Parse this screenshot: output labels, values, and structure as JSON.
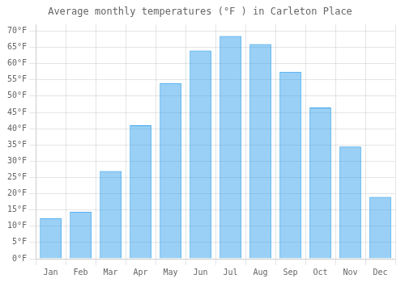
{
  "chart_data": {
    "type": "bar",
    "title": "Average monthly temperatures (°F ) in Carleton Place",
    "categories": [
      "Jan",
      "Feb",
      "Mar",
      "Apr",
      "May",
      "Jun",
      "Jul",
      "Aug",
      "Sep",
      "Oct",
      "Nov",
      "Dec"
    ],
    "values": [
      12.5,
      14.5,
      27.0,
      41.0,
      54.0,
      64.0,
      68.5,
      66.0,
      57.5,
      46.5,
      34.5,
      19.0
    ],
    "ylim": [
      0,
      72
    ],
    "yticks": [
      {
        "value": 0,
        "label": "0°F"
      },
      {
        "value": 5,
        "label": "5°F"
      },
      {
        "value": 10,
        "label": "10°F"
      },
      {
        "value": 15,
        "label": "15°F"
      },
      {
        "value": 20,
        "label": "20°F"
      },
      {
        "value": 25,
        "label": "25°F"
      },
      {
        "value": 30,
        "label": "30°F"
      },
      {
        "value": 35,
        "label": "35°F"
      },
      {
        "value": 40,
        "label": "40°F"
      },
      {
        "value": 45,
        "label": "45°F"
      },
      {
        "value": 50,
        "label": "50°F"
      },
      {
        "value": 55,
        "label": "55°F"
      },
      {
        "value": 60,
        "label": "60°F"
      },
      {
        "value": 65,
        "label": "65°F"
      },
      {
        "value": 70,
        "label": "70°F"
      }
    ],
    "grid": true
  }
}
